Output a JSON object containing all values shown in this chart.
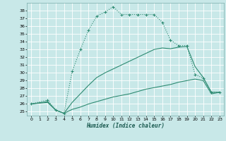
{
  "xlabel": "Humidex (Indice chaleur)",
  "background_color": "#c8e8e8",
  "grid_color": "#ffffff",
  "line_color": "#2e8b72",
  "xlim": [
    -0.5,
    23.5
  ],
  "ylim": [
    24.5,
    39.0
  ],
  "xticks": [
    0,
    1,
    2,
    3,
    4,
    5,
    6,
    7,
    8,
    9,
    10,
    11,
    12,
    13,
    14,
    15,
    16,
    17,
    18,
    19,
    20,
    21,
    22,
    23
  ],
  "yticks": [
    25,
    26,
    27,
    28,
    29,
    30,
    31,
    32,
    33,
    34,
    35,
    36,
    37,
    38
  ],
  "s1_x": [
    0,
    2,
    3,
    4,
    5,
    6,
    7,
    8,
    9,
    10,
    11,
    12,
    13,
    14,
    15,
    16,
    17,
    18,
    19,
    20,
    21,
    22,
    23
  ],
  "s1_y": [
    26.0,
    26.5,
    25.2,
    24.8,
    30.2,
    33.0,
    35.5,
    37.3,
    37.8,
    38.5,
    37.5,
    37.5,
    37.5,
    37.5,
    37.5,
    36.5,
    34.2,
    33.5,
    33.5,
    29.8,
    29.3,
    27.5,
    27.5
  ],
  "s2_x": [
    0,
    2,
    3,
    4,
    5,
    6,
    7,
    8,
    9,
    10,
    11,
    12,
    13,
    14,
    15,
    16,
    17,
    18,
    19,
    20,
    21,
    22,
    23
  ],
  "s2_y": [
    26.0,
    26.2,
    25.2,
    24.8,
    25.3,
    25.6,
    26.0,
    26.3,
    26.6,
    26.9,
    27.1,
    27.3,
    27.6,
    27.9,
    28.1,
    28.3,
    28.5,
    28.8,
    29.0,
    29.2,
    29.0,
    27.3,
    27.5
  ],
  "s3_x": [
    0,
    2,
    3,
    4,
    5,
    6,
    7,
    8,
    9,
    10,
    11,
    12,
    13,
    14,
    15,
    16,
    17,
    18,
    19,
    20,
    21,
    22,
    23
  ],
  "s3_y": [
    26.0,
    26.3,
    25.2,
    24.8,
    26.2,
    27.3,
    28.4,
    29.4,
    30.0,
    30.5,
    31.0,
    31.5,
    32.0,
    32.5,
    33.0,
    33.2,
    33.1,
    33.3,
    33.4,
    30.8,
    29.4,
    27.5,
    27.5
  ]
}
